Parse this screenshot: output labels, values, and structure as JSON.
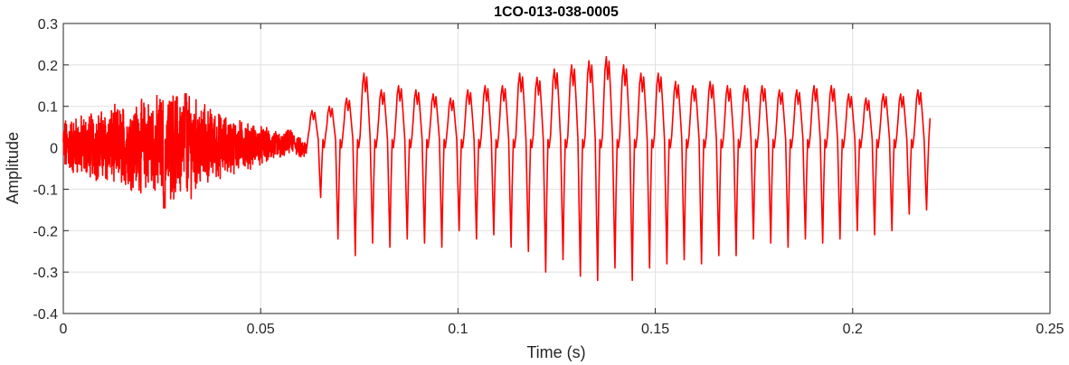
{
  "chart_data": {
    "type": "line",
    "title": "1CO-013-038-0005",
    "xlabel": "Time (s)",
    "ylabel": "Amplitude",
    "xlim": [
      0,
      0.25
    ],
    "ylim": [
      -0.4,
      0.3
    ],
    "xticks": [
      0,
      0.05,
      0.1,
      0.15,
      0.2,
      0.25
    ],
    "xtick_labels": [
      "0",
      "0.05",
      "0.1",
      "0.15",
      "0.2",
      "0.25"
    ],
    "yticks": [
      -0.4,
      -0.3,
      -0.2,
      -0.1,
      0,
      0.1,
      0.2,
      0.3
    ],
    "ytick_labels": [
      "-0.4",
      "-0.3",
      "-0.2",
      "-0.1",
      "0",
      "0.1",
      "0.2",
      "0.3"
    ],
    "grid": true,
    "box": true,
    "colors": {
      "line": "#ff0000",
      "grid": "#dfdfdf",
      "axes": "#262626"
    },
    "series": [
      {
        "segments": [
          {
            "kind": "noise",
            "x_start": 0,
            "x_end": 0.0617,
            "envelope": [
              [
                0,
                0.06
              ],
              [
                0.01,
                0.08
              ],
              [
                0.02,
                0.1
              ],
              [
                0.028,
                0.12
              ],
              [
                0.032,
                0.11
              ],
              [
                0.04,
                0.07
              ],
              [
                0.047,
                0.05
              ],
              [
                0.055,
                0.03
              ],
              [
                0.061,
                0.02
              ]
            ],
            "notable_values": {
              "max": 0.13,
              "min": -0.145
            }
          },
          {
            "kind": "cycles",
            "x_start": 0.0617,
            "x_end": 0.2196,
            "comment_peaks_min": "peak = max of cycle, trough = min of cycle",
            "peaks": [
              0.09,
              0.1,
              0.12,
              0.18,
              0.14,
              0.15,
              0.14,
              0.13,
              0.12,
              0.14,
              0.15,
              0.15,
              0.18,
              0.17,
              0.19,
              0.2,
              0.21,
              0.22,
              0.2,
              0.18,
              0.18,
              0.16,
              0.15,
              0.16,
              0.15,
              0.15,
              0.15,
              0.14,
              0.14,
              0.15,
              0.15,
              0.13,
              0.12,
              0.13,
              0.13,
              0.14
            ],
            "troughs": [
              -0.12,
              -0.22,
              -0.26,
              -0.23,
              -0.24,
              -0.22,
              -0.23,
              -0.24,
              -0.2,
              -0.22,
              -0.21,
              -0.24,
              -0.25,
              -0.3,
              -0.27,
              -0.31,
              -0.32,
              -0.29,
              -0.32,
              -0.29,
              -0.28,
              -0.27,
              -0.28,
              -0.26,
              -0.26,
              -0.22,
              -0.23,
              -0.24,
              -0.22,
              -0.23,
              -0.22,
              -0.2,
              -0.21,
              -0.2,
              -0.16,
              -0.15
            ],
            "end_value": 0.07
          }
        ]
      }
    ]
  }
}
